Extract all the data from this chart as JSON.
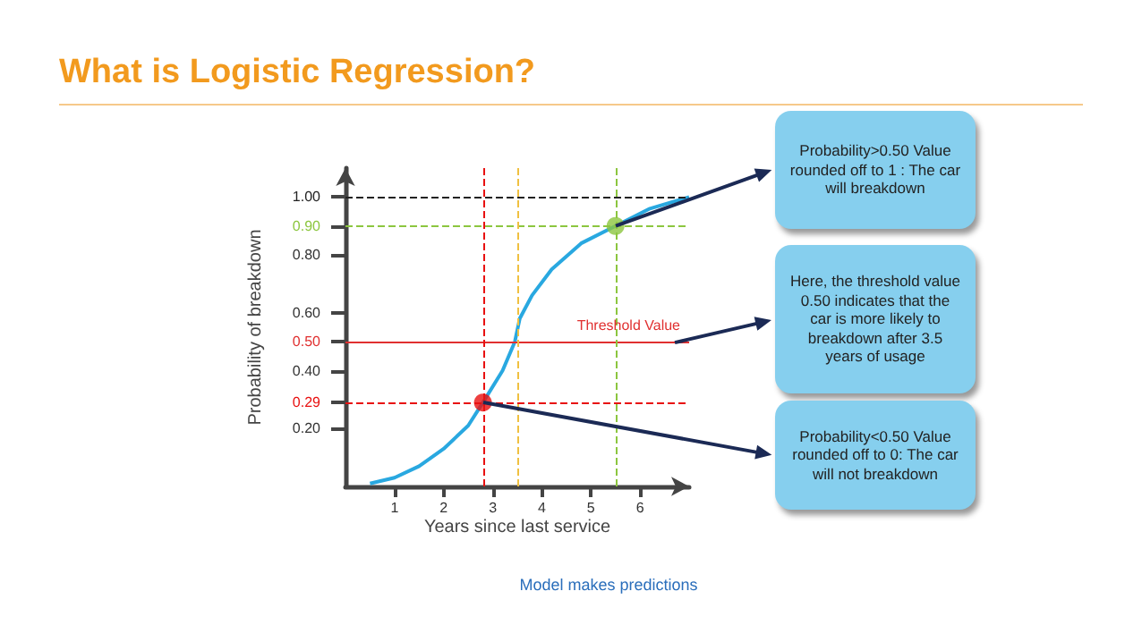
{
  "chart_data": {
    "type": "line",
    "title": "What is Logistic Regression?",
    "xlabel": "Years since last service",
    "ylabel": "Probability of breakdown",
    "series": [
      {
        "color": "#29a8e0",
        "marker": "none",
        "x": [
          0.5,
          1,
          1.5,
          2,
          2.5,
          2.8,
          3.2,
          3.45,
          3.55,
          3.8,
          4.2,
          4.8,
          5.5,
          6.2,
          7
        ],
        "values": [
          0.01,
          0.03,
          0.07,
          0.13,
          0.21,
          0.29,
          0.4,
          0.5,
          0.58,
          0.66,
          0.75,
          0.84,
          0.9,
          0.96,
          1.0
        ]
      },
      {
        "type": "scatter",
        "marker": "circle",
        "x": [
          2.8,
          5.5
        ],
        "values": [
          0.29,
          0.9
        ],
        "colors": [
          "#e81010",
          "#8cc63f"
        ]
      }
    ],
    "xlim": [
      0,
      7
    ],
    "xticks": [
      1,
      2,
      3,
      4,
      5,
      6
    ],
    "ylim": [
      0,
      1.1
    ],
    "yticks": [
      {
        "value": 0.2,
        "label": "0.20"
      },
      0.29,
      {
        "value": 0.4,
        "label": "0.40"
      },
      {
        "value": 0.5,
        "label": "0.50"
      },
      {
        "value": 0.6,
        "label": "0.60"
      },
      {
        "value": 0.8,
        "label": "0.80"
      },
      {
        "value": 0.9,
        "label": "0.90"
      },
      {
        "value": 1.0,
        "label": "1.00"
      }
    ],
    "ref_lines": [
      {
        "axis": "y",
        "value": 1.0,
        "color": "#222222",
        "line_style": "dashed"
      },
      {
        "axis": "y",
        "value": 0.9,
        "color": "#8cc63f",
        "line_style": "dashed"
      },
      {
        "axis": "y",
        "value": 0.5,
        "color": "#e03030",
        "line_style": "solid",
        "label": "Threshold Value"
      },
      {
        "axis": "y",
        "value": 0.29,
        "color": "#e81010",
        "line_style": "dashed"
      },
      {
        "axis": "x",
        "value": 2.8,
        "color": "#e81010",
        "line_style": "dashed"
      },
      {
        "axis": "x",
        "value": 3.5,
        "color": "#f0c040",
        "line_style": "dashed"
      },
      {
        "axis": "x",
        "value": 5.5,
        "color": "#8cc63f",
        "line_style": "dashed"
      }
    ],
    "annotations": [
      "Probability>0.50 Value rounded off to 1 : The car will breakdown",
      "Here, the threshold value 0.50 indicates that the car is more likely to breakdown after 3.5 years of usage",
      "Probability<0.50 Value rounded off to 0: The car will not breakdown",
      "Model makes predictions"
    ],
    "grid": false
  }
}
